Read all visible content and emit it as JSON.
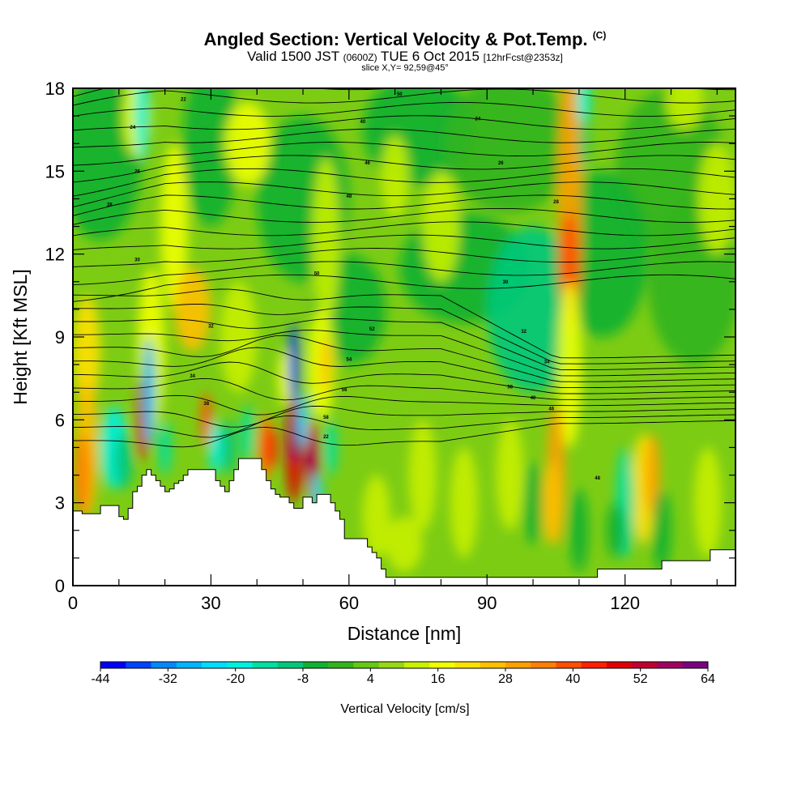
{
  "header": {
    "title": "Angled Section: Vertical Velocity & Pot.Temp.",
    "title_suffix": "(C)",
    "valid_prefix": "Valid 1500 JST",
    "valid_utc": "(0600Z)",
    "valid_date": "TUE 6 Oct 2015",
    "valid_fcst": "[12hrFcst@2353z]",
    "slice": "slice X,Y= 92,59@45°"
  },
  "chart_data": {
    "type": "heatmap",
    "xlabel": "Distance [nm]",
    "ylabel": "Height [Kft MSL]",
    "xlim": [
      0,
      144
    ],
    "ylim": [
      0,
      18
    ],
    "x_ticks": [
      "0",
      "30",
      "60",
      "90",
      "120"
    ],
    "y_ticks": [
      "0",
      "3",
      "6",
      "9",
      "12",
      "15",
      "18"
    ],
    "colorbar": {
      "label": "Vertical Velocity [cm/s]",
      "tick_labels": [
        "-44",
        "-32",
        "-20",
        "-8",
        "4",
        "16",
        "28",
        "40",
        "52",
        "64"
      ],
      "colors": [
        "#0000ff",
        "#0044ff",
        "#0088ff",
        "#00b4ff",
        "#00dcff",
        "#00f0e0",
        "#00e0a0",
        "#00c87a",
        "#10b030",
        "#32b41e",
        "#64c814",
        "#96d814",
        "#c8f000",
        "#f0ff00",
        "#ffe000",
        "#ffc000",
        "#ffa000",
        "#ff8000",
        "#ff5000",
        "#ff2000",
        "#e00000",
        "#c00030",
        "#a00060",
        "#7a0080"
      ]
    },
    "terrain_kft": [
      [
        0,
        2.7
      ],
      [
        2,
        2.6
      ],
      [
        4,
        2.6
      ],
      [
        6,
        2.9
      ],
      [
        8,
        2.9
      ],
      [
        10,
        2.5
      ],
      [
        11,
        2.4
      ],
      [
        12,
        2.8
      ],
      [
        13,
        3.4
      ],
      [
        14,
        3.6
      ],
      [
        15,
        4.0
      ],
      [
        16,
        4.2
      ],
      [
        17,
        4.0
      ],
      [
        18,
        3.8
      ],
      [
        19,
        3.6
      ],
      [
        20,
        3.4
      ],
      [
        21,
        3.5
      ],
      [
        22,
        3.7
      ],
      [
        23,
        3.8
      ],
      [
        24,
        4.0
      ],
      [
        25,
        4.2
      ],
      [
        30,
        4.2
      ],
      [
        31,
        3.8
      ],
      [
        32,
        3.6
      ],
      [
        33,
        3.4
      ],
      [
        34,
        3.8
      ],
      [
        35,
        4.2
      ],
      [
        36,
        4.6
      ],
      [
        40,
        4.6
      ],
      [
        41,
        4.2
      ],
      [
        42,
        3.8
      ],
      [
        43,
        3.5
      ],
      [
        44,
        3.3
      ],
      [
        45,
        3.2
      ],
      [
        47,
        3.0
      ],
      [
        48,
        2.8
      ],
      [
        50,
        3.2
      ],
      [
        52,
        3.0
      ],
      [
        53,
        3.3
      ],
      [
        55,
        3.3
      ],
      [
        56,
        3.0
      ],
      [
        57,
        2.7
      ],
      [
        58,
        2.4
      ],
      [
        59,
        1.7
      ],
      [
        63,
        1.7
      ],
      [
        64,
        1.4
      ],
      [
        65,
        1.2
      ],
      [
        66,
        1.0
      ],
      [
        67,
        0.6
      ],
      [
        68,
        0.3
      ],
      [
        113,
        0.3
      ],
      [
        114,
        0.6
      ],
      [
        127,
        0.6
      ],
      [
        128,
        0.9
      ],
      [
        138,
        0.9
      ],
      [
        138.5,
        1.3
      ],
      [
        144,
        1.3
      ]
    ],
    "isentrope_labels": [
      "22",
      "24",
      "26",
      "28",
      "30",
      "32",
      "34",
      "38",
      "40",
      "46",
      "48",
      "50",
      "52",
      "54",
      "56",
      "58"
    ]
  }
}
